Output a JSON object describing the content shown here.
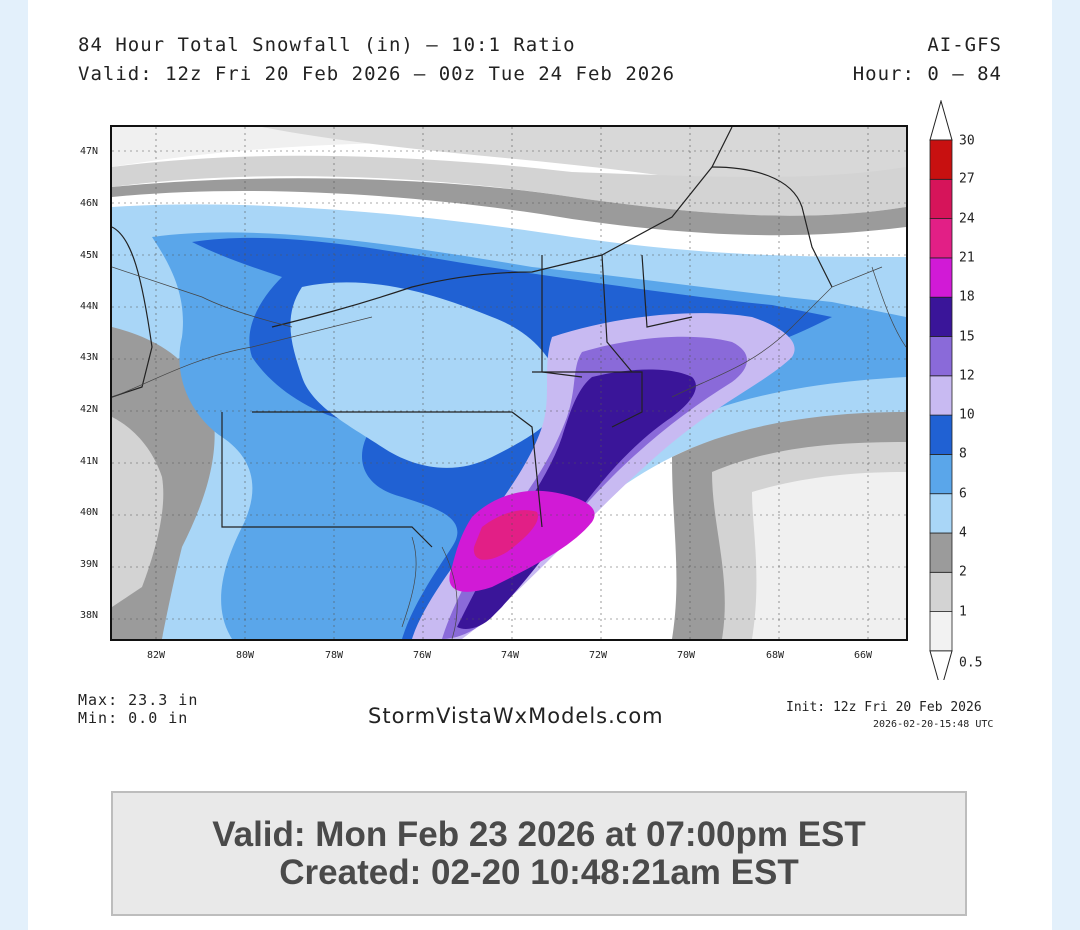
{
  "header": {
    "title": "84 Hour Total Snowfall (in) — 10:1 Ratio",
    "valid_range": "Valid: 12z Fri 20 Feb 2026 — 00z Tue 24 Feb 2026",
    "model": "AI-GFS",
    "hours": "Hour: 0 — 84"
  },
  "map": {
    "lat_ticks": [
      "47N",
      "46N",
      "45N",
      "44N",
      "43N",
      "42N",
      "41N",
      "40N",
      "39N",
      "38N"
    ],
    "lon_ticks": [
      "82W",
      "80W",
      "78W",
      "76W",
      "74W",
      "72W",
      "70W",
      "68W",
      "66W"
    ]
  },
  "colorbar": {
    "levels": [
      "0.5",
      "1",
      "2",
      "4",
      "6",
      "8",
      "10",
      "12",
      "15",
      "18",
      "21",
      "24",
      "27",
      "30"
    ],
    "colors": [
      "#f2f2f2",
      "#d3d3d3",
      "#9b9b9b",
      "#a9d6f7",
      "#5aa6ea",
      "#2061d3",
      "#c8baf2",
      "#8a6ad9",
      "#3a1599",
      "#d11ad6",
      "#e21f86",
      "#d6145a",
      "#c81010"
    ]
  },
  "stats": {
    "max": "Max: 23.3 in",
    "min": "Min: 0.0 in"
  },
  "footer": {
    "site": "StormVistaWxModels.com",
    "init": "Init: 12z Fri 20 Feb 2026",
    "init_utc": "2026-02-20-15:48 UTC"
  },
  "valid_box": {
    "valid": "Valid: Mon Feb 23 2026 at 07:00pm EST",
    "created": "Created: 02-20 10:48:21am EST"
  }
}
